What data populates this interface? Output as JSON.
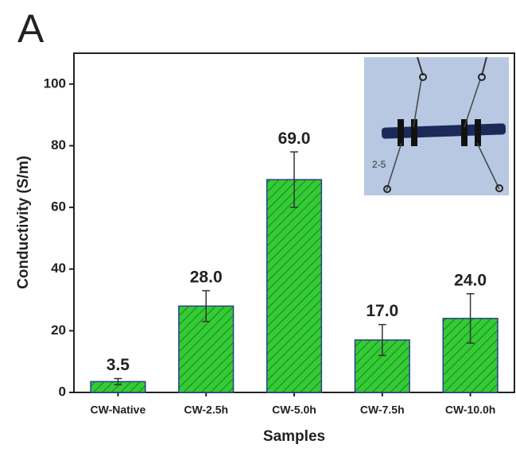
{
  "chart_data": {
    "type": "bar",
    "panel": "A",
    "x_label": "Samples",
    "y_label": "Conductivity (S/m)",
    "inset_text": "2-5",
    "categories": [
      "CW-Native",
      "CW-2.5h",
      "CW-5.0h",
      "CW-7.5h",
      "CW-10.0h"
    ],
    "values": [
      3.5,
      28,
      69,
      17,
      24
    ],
    "value_labels": [
      "3.5",
      "28.0",
      "69.0",
      "17.0",
      "24.0"
    ],
    "errors": [
      1,
      5,
      9,
      5,
      8
    ],
    "color": "#33cc33",
    "edge_color": "#2a3f8a",
    "ylim": [
      0,
      110
    ],
    "yticks": [
      0,
      20,
      40,
      60,
      80,
      100
    ],
    "grid": false
  }
}
